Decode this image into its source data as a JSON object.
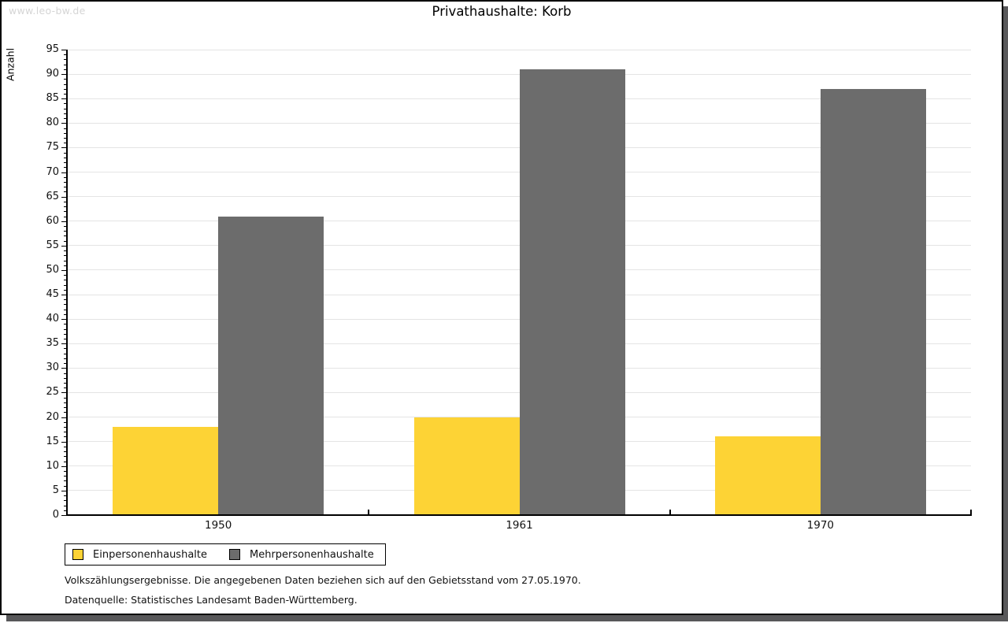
{
  "watermark": "www.leo-bw.de",
  "header": {
    "title": "Privathaushalte: Korb"
  },
  "chart_data": {
    "type": "bar",
    "title": "Privathaushalte: Korb",
    "categories": [
      "1950",
      "1961",
      "1970"
    ],
    "series": [
      {
        "name": "Einpersonenhaushalte",
        "color": "#fdd335",
        "values": [
          18,
          20,
          16
        ]
      },
      {
        "name": "Mehrpersonenhaushalte",
        "color": "#6c6c6c",
        "values": [
          61,
          91,
          87
        ]
      }
    ],
    "xlabel": "",
    "ylabel": "Anzahl",
    "ylim": [
      0,
      95
    ],
    "y_major_step": 5,
    "y_minor_step": 1,
    "grid": true,
    "gridline_color": "#e4e4e4",
    "legend_position": "bottom-left"
  },
  "footnotes": {
    "line1": "Volkszählungsergebnisse. Die angegebenen Daten beziehen sich auf den Gebietsstand vom 27.05.1970.",
    "line2": "Datenquelle: Statistisches Landesamt Baden-Württemberg."
  },
  "colors": {
    "shadow": "#58585a",
    "axis": "#000000",
    "watermark_text": "#d5d5d5"
  }
}
